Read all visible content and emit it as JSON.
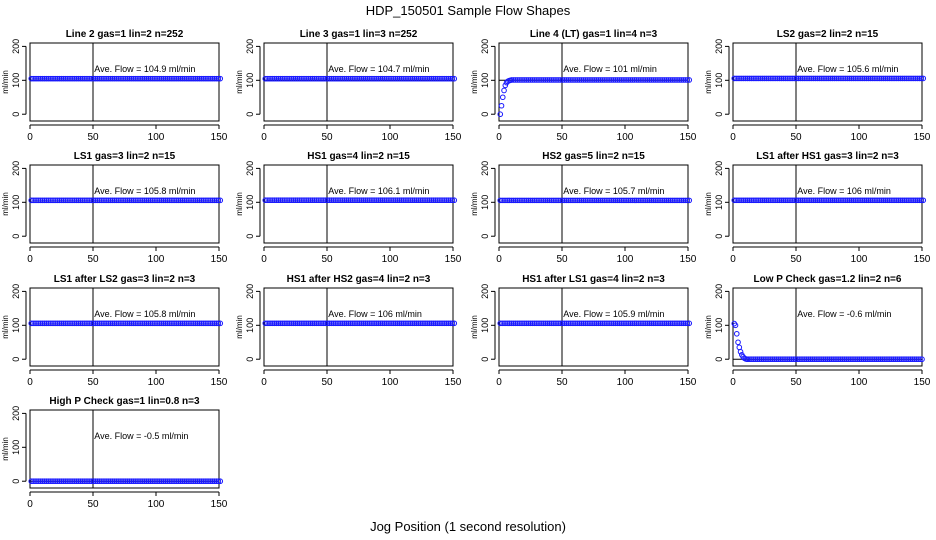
{
  "figure": {
    "title": "HDP_150501  Sample Flow Shapes",
    "xlabel": "Jog Position (1 second resolution)"
  },
  "chart_data": [
    {
      "type": "scatter",
      "title": "Line 2 gas=1 lin=2 n=252",
      "annotation": "Ave. Flow = 104.9  ml/min",
      "ylabel": "ml/min",
      "shape": "flat",
      "level": 104.9,
      "xlim": [
        0,
        150
      ],
      "ylim": [
        -20,
        210
      ],
      "x_ticks": [
        0,
        50,
        100,
        150
      ],
      "y_ticks": [
        0,
        100,
        200
      ],
      "vline_x": 50,
      "hline_y": 100,
      "grid": false
    },
    {
      "type": "scatter",
      "title": "Line 3 gas=1 lin=3 n=252",
      "annotation": "Ave. Flow = 104.7  ml/min",
      "ylabel": "ml/min",
      "shape": "flat",
      "level": 104.7,
      "xlim": [
        0,
        150
      ],
      "ylim": [
        -20,
        210
      ],
      "x_ticks": [
        0,
        50,
        100,
        150
      ],
      "y_ticks": [
        0,
        100,
        200
      ],
      "vline_x": 50,
      "hline_y": 100,
      "grid": false
    },
    {
      "type": "scatter",
      "title": "Line 4 (LT) gas=1 lin=4 n=3",
      "annotation": "Ave. Flow = 101  ml/min",
      "ylabel": "ml/min",
      "shape": "rise",
      "level": 101,
      "rise_points": [
        [
          0,
          0
        ],
        [
          1,
          25
        ],
        [
          2,
          50
        ],
        [
          3,
          70
        ],
        [
          4,
          85
        ],
        [
          5,
          93
        ],
        [
          6,
          97
        ],
        [
          7,
          99
        ],
        [
          8,
          100
        ]
      ],
      "xlim": [
        0,
        150
      ],
      "ylim": [
        -20,
        210
      ],
      "x_ticks": [
        0,
        50,
        100,
        150
      ],
      "y_ticks": [
        0,
        100,
        200
      ],
      "vline_x": 50,
      "hline_y": 100,
      "grid": false
    },
    {
      "type": "scatter",
      "title": "LS2 gas=2 lin=2 n=15",
      "annotation": "Ave. Flow = 105.6  ml/min",
      "ylabel": "ml/min",
      "shape": "flat",
      "level": 105.6,
      "xlim": [
        0,
        150
      ],
      "ylim": [
        -20,
        210
      ],
      "x_ticks": [
        0,
        50,
        100,
        150
      ],
      "y_ticks": [
        0,
        100,
        200
      ],
      "vline_x": 50,
      "hline_y": 100,
      "grid": false
    },
    {
      "type": "scatter",
      "title": "LS1 gas=3 lin=2 n=15",
      "annotation": "Ave. Flow = 105.8  ml/min",
      "ylabel": "ml/min",
      "shape": "flat",
      "level": 105.8,
      "xlim": [
        0,
        150
      ],
      "ylim": [
        -20,
        210
      ],
      "x_ticks": [
        0,
        50,
        100,
        150
      ],
      "y_ticks": [
        0,
        100,
        200
      ],
      "vline_x": 50,
      "hline_y": 100,
      "grid": false
    },
    {
      "type": "scatter",
      "title": "HS1 gas=4 lin=2 n=15",
      "annotation": "Ave. Flow = 106.1  ml/min",
      "ylabel": "ml/min",
      "shape": "flat",
      "level": 106.1,
      "xlim": [
        0,
        150
      ],
      "ylim": [
        -20,
        210
      ],
      "x_ticks": [
        0,
        50,
        100,
        150
      ],
      "y_ticks": [
        0,
        100,
        200
      ],
      "vline_x": 50,
      "hline_y": 100,
      "grid": false
    },
    {
      "type": "scatter",
      "title": "HS2 gas=5 lin=2 n=15",
      "annotation": "Ave. Flow = 105.7  ml/min",
      "ylabel": "ml/min",
      "shape": "flat",
      "level": 105.7,
      "xlim": [
        0,
        150
      ],
      "ylim": [
        -20,
        210
      ],
      "x_ticks": [
        0,
        50,
        100,
        150
      ],
      "y_ticks": [
        0,
        100,
        200
      ],
      "vline_x": 50,
      "hline_y": 100,
      "grid": false
    },
    {
      "type": "scatter",
      "title": "LS1 after HS1 gas=3 lin=2 n=3",
      "annotation": "Ave. Flow = 106  ml/min",
      "ylabel": "ml/min",
      "shape": "flat",
      "level": 106,
      "xlim": [
        0,
        150
      ],
      "ylim": [
        -20,
        210
      ],
      "x_ticks": [
        0,
        50,
        100,
        150
      ],
      "y_ticks": [
        0,
        100,
        200
      ],
      "vline_x": 50,
      "hline_y": 100,
      "grid": false
    },
    {
      "type": "scatter",
      "title": "LS1 after LS2 gas=3 lin=2 n=3",
      "annotation": "Ave. Flow = 105.8  ml/min",
      "ylabel": "ml/min",
      "shape": "flat",
      "level": 105.8,
      "xlim": [
        0,
        150
      ],
      "ylim": [
        -20,
        210
      ],
      "x_ticks": [
        0,
        50,
        100,
        150
      ],
      "y_ticks": [
        0,
        100,
        200
      ],
      "vline_x": 50,
      "hline_y": 100,
      "grid": false
    },
    {
      "type": "scatter",
      "title": "HS1 after HS2 gas=4 lin=2 n=3",
      "annotation": "Ave. Flow = 106  ml/min",
      "ylabel": "ml/min",
      "shape": "flat",
      "level": 106,
      "xlim": [
        0,
        150
      ],
      "ylim": [
        -20,
        210
      ],
      "x_ticks": [
        0,
        50,
        100,
        150
      ],
      "y_ticks": [
        0,
        100,
        200
      ],
      "vline_x": 50,
      "hline_y": 100,
      "grid": false
    },
    {
      "type": "scatter",
      "title": "HS1 after LS1 gas=4 lin=2 n=3",
      "annotation": "Ave. Flow = 105.9  ml/min",
      "ylabel": "ml/min",
      "shape": "flat",
      "level": 105.9,
      "xlim": [
        0,
        150
      ],
      "ylim": [
        -20,
        210
      ],
      "x_ticks": [
        0,
        50,
        100,
        150
      ],
      "y_ticks": [
        0,
        100,
        200
      ],
      "vline_x": 50,
      "hline_y": 100,
      "grid": false
    },
    {
      "type": "scatter",
      "title": "Low P Check gas=1.2 lin=2 n=6",
      "annotation": "Ave. Flow = -0.6  ml/min",
      "ylabel": "ml/min",
      "shape": "decay",
      "level": 0,
      "decay_points": [
        [
          0,
          105
        ],
        [
          1,
          100
        ],
        [
          2,
          75
        ],
        [
          3,
          50
        ],
        [
          4,
          35
        ],
        [
          5,
          22
        ],
        [
          6,
          13
        ],
        [
          7,
          7
        ],
        [
          8,
          3
        ],
        [
          9,
          1
        ],
        [
          10,
          0
        ]
      ],
      "xlim": [
        0,
        150
      ],
      "ylim": [
        -20,
        210
      ],
      "x_ticks": [
        0,
        50,
        100,
        150
      ],
      "y_ticks": [
        0,
        100,
        200
      ],
      "vline_x": 50,
      "hline_y": 0,
      "grid": false
    },
    {
      "type": "scatter",
      "title": "High P Check gas=1 lin=0.8 n=3",
      "annotation": "Ave. Flow = -0.5  ml/min",
      "ylabel": "ml/min",
      "shape": "flat",
      "level": 0,
      "xlim": [
        0,
        150
      ],
      "ylim": [
        -20,
        210
      ],
      "x_ticks": [
        0,
        50,
        100,
        150
      ],
      "y_ticks": [
        0,
        100,
        200
      ],
      "vline_x": 50,
      "hline_y": 0,
      "grid": false
    }
  ],
  "colors": {
    "points": "#1a1aff",
    "axis": "#000000"
  }
}
